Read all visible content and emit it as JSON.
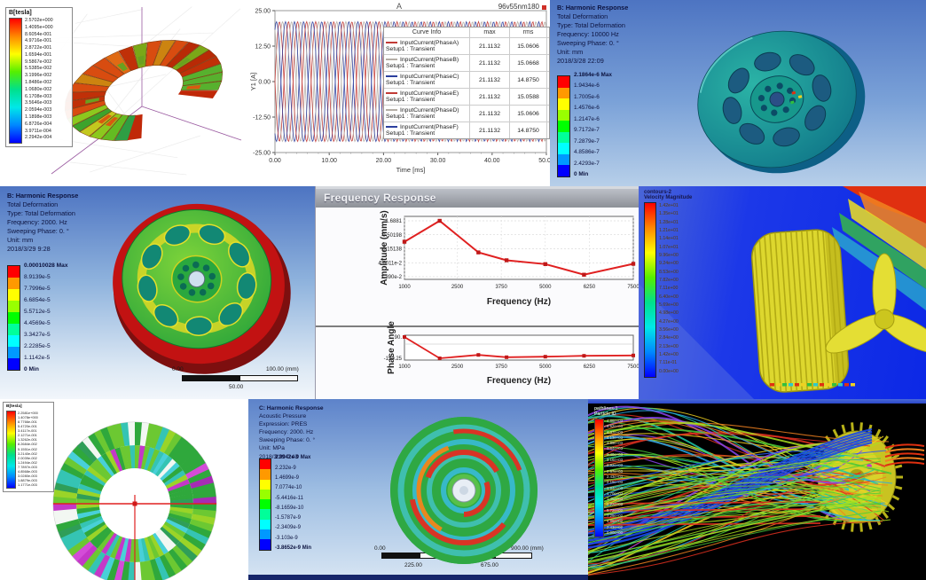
{
  "palettes": {
    "ansys9": [
      "#ff0000",
      "#ff9900",
      "#ffff00",
      "#99ff00",
      "#00ff00",
      "#00ff99",
      "#00ffff",
      "#0099ff",
      "#0000ff"
    ],
    "rainbow": [
      "#ff0000",
      "#ff8800",
      "#ffff00",
      "#55ee00",
      "#00e08c",
      "#00e8e8",
      "#0088ff",
      "#0000ff"
    ],
    "streamlines": [
      "#e03020",
      "#f08020",
      "#f0d020",
      "#a8e020",
      "#48c838",
      "#20c8a8",
      "#28a8e8",
      "#2858f8",
      "#8844ee"
    ],
    "torus_reds": [
      "#c03008",
      "#d84c10",
      "#e06a14",
      "#b82a06",
      "#cc8410",
      "#7aa818"
    ],
    "torus_greens": [
      "#3da32c",
      "#63bb22",
      "#8cc81e",
      "#2f9e44",
      "#c3c81e",
      "#57b12e"
    ]
  },
  "panels": {
    "maxwell_torus": {
      "legend_title": "B[tesla]",
      "legend_values": [
        "2.5702e+000",
        "1.4095e+000",
        "8.6054e-001",
        "4.9716e-001",
        "2.8722e-001",
        "1.6594e-001",
        "9.5867e-002",
        "5.5385e-002",
        "3.1996e-002",
        "1.8486e-002",
        "1.0680e-002",
        "6.1708e-003",
        "3.5646e-003",
        "2.0594e-003",
        "1.1898e-003",
        "6.8726e-004",
        "3.9711e-004",
        "2.2942e-004"
      ]
    },
    "transient_currents": {
      "title": "A",
      "corner_label": "96v55nm180",
      "ylabel": "Y1 [A]",
      "xlabel": "Time [ms]",
      "y_ticks": [
        "25.00",
        "12.50",
        "0.00",
        "-12.50",
        "-25.00"
      ],
      "x_ticks": [
        "0.00",
        "10.00",
        "20.00",
        "30.00",
        "40.00",
        "50.00"
      ],
      "legend_header": [
        "Curve Info",
        "max",
        "rms"
      ],
      "curves": [
        {
          "name": "InputCurrent(PhaseA)",
          "sub": "Setup1 : Transient",
          "max": "21.1132",
          "rms": "15.0606",
          "color": "#c23b36",
          "phase_deg": 0
        },
        {
          "name": "InputCurrent(PhaseB)",
          "sub": "Setup1 : Transient",
          "max": "21.1132",
          "rms": "15.0668",
          "color": "#b5aea6",
          "phase_deg": -60
        },
        {
          "name": "InputCurrent(PhaseC)",
          "sub": "Setup1 : Transient",
          "max": "21.1132",
          "rms": "14.8750",
          "color": "#2c3f9e",
          "phase_deg": -120
        },
        {
          "name": "InputCurrent(PhaseE)",
          "sub": "Setup1 : Transient",
          "max": "21.1132",
          "rms": "15.0588",
          "color": "#c23b36",
          "phase_deg": -180
        },
        {
          "name": "InputCurrent(PhaseD)",
          "sub": "Setup1 : Transient",
          "max": "21.1132",
          "rms": "15.0606",
          "color": "#b5aea6",
          "phase_deg": -240
        },
        {
          "name": "InputCurrent(PhaseF)",
          "sub": "Setup1 : Transient",
          "max": "21.1132",
          "rms": "14.8750",
          "color": "#2c3f9e",
          "phase_deg": -300
        }
      ]
    },
    "harmonic_10000": {
      "title_lines": [
        "B: Harmonic Response",
        "Total Deformation",
        "Type: Total Deformation",
        "Frequency: 10000 Hz",
        "Sweeping Phase: 0. °",
        "Unit: mm",
        "2018/3/28 22:09"
      ],
      "legend_values": [
        "2.1864e-6 Max",
        "1.9434e-6",
        "1.7005e-6",
        "1.4576e-6",
        "1.2147e-6",
        "9.7172e-7",
        "7.2879e-7",
        "4.8586e-7",
        "2.4293e-7",
        "0 Min"
      ]
    },
    "harmonic_2000": {
      "title_lines": [
        "B: Harmonic Response",
        "Total Deformation",
        "Type: Total Deformation",
        "Frequency: 2000. Hz",
        "Sweeping Phase: 0. °",
        "Unit: mm",
        "2018/3/29 9:28"
      ],
      "legend_values": [
        "0.00010028 Max",
        "8.9139e-5",
        "7.7996e-5",
        "6.6854e-5",
        "5.5712e-5",
        "4.4569e-5",
        "3.3427e-5",
        "2.2285e-5",
        "1.1142e-5",
        "0 Min"
      ],
      "scale_bar": {
        "left": "0.00",
        "right": "100.00 (mm)",
        "mid": "50.00"
      }
    },
    "frequency_response": {
      "window_title": "Frequency Response",
      "amplitude_ylabel": "Amplitude (mm/s)",
      "amplitude_yticks": [
        "1.6881",
        "0.50198",
        "0.15138",
        "4.6011e-2",
        "1.390e-2"
      ],
      "phase_ylabel": "Phase Angle",
      "phase_yticks": [
        "90.",
        "-150.25"
      ],
      "xlabel": "Frequency (Hz)",
      "x_ticks": [
        "1000",
        "2500",
        "3750",
        "5000",
        "6250",
        "7500"
      ]
    },
    "cfd_contour": {
      "legend_title_lines": [
        "contours-2",
        "Velocity Magnitude"
      ],
      "legend_values": [
        "1.42e+01",
        "1.35e+01",
        "1.28e+01",
        "1.21e+01",
        "1.14e+01",
        "1.07e+01",
        "9.96e+00",
        "9.24e+00",
        "8.53e+00",
        "7.82e+00",
        "7.11e+00",
        "6.40e+00",
        "5.69e+00",
        "4.98e+00",
        "4.27e+00",
        "3.56e+00",
        "2.84e+00",
        "2.13e+00",
        "1.42e+00",
        "7.11e-01",
        "0.00e+00"
      ]
    },
    "maxwell_rotor": {
      "legend_title": "B[tesla]",
      "legend_values": [
        "2.2581e+000",
        "1.4078e+000",
        "8.7766e-001",
        "5.4720e-001",
        "3.4117e-001",
        "2.1271e-001",
        "1.3262e-001",
        "8.2684e-002",
        "5.1551e-002",
        "3.2140e-002",
        "2.0039e-002",
        "1.2494e-002",
        "7.7897e-003",
        "4.8568e-003",
        "3.0280e-003",
        "1.8879e-003",
        "1.1771e-003"
      ]
    },
    "acoustic": {
      "title_lines": [
        "C: Harmonic Response",
        "Acoustic Pressure",
        "Expression: PRES",
        "Frequency: 2000. Hz",
        "Sweeping Phase: 0. °",
        "Unit: MPa",
        "2018/3/29 0:43"
      ],
      "legend_values": [
        "2.9942e-9 Max",
        "2.232e-9",
        "1.4699e-9",
        "7.0774e-10",
        "-5.4416e-11",
        "-8.1659e-10",
        "-1.5787e-9",
        "-2.3409e-9",
        "-3.103e-9",
        "-3.8652e-9 Min"
      ],
      "scale_bar": {
        "top": [
          "0.00",
          "450.00",
          "900.00 (mm)"
        ],
        "bottom": [
          "225.00",
          "675.00"
        ]
      }
    },
    "pathlines": {
      "legend_title_lines": [
        "pathlines-1",
        "Particle ID"
      ],
      "legend_values": [
        "4.86e+03",
        "4.62e+03",
        "4.37e+03",
        "4.13e+03",
        "3.89e+03",
        "3.64e+03",
        "3.40e+03",
        "3.16e+03",
        "2.92e+03",
        "2.67e+03",
        "2.43e+03",
        "2.19e+03",
        "1.94e+03",
        "1.70e+03",
        "1.46e+03",
        "1.22e+03",
        "9.72e+02",
        "7.29e+02",
        "4.86e+02",
        "2.43e+02",
        "0.00e+00"
      ]
    }
  },
  "chart_data": [
    {
      "type": "line",
      "title": "A",
      "subtitle": "96v55nm180",
      "xlabel": "Time [ms]",
      "ylabel": "Y1 [A]",
      "xlim": [
        0,
        50
      ],
      "ylim": [
        -25,
        25
      ],
      "waveform": "sine",
      "amplitude": 21.1132,
      "period_ms": 3.3333,
      "series": [
        {
          "name": "InputCurrent(PhaseA)",
          "phase_deg": 0,
          "max": 21.1132,
          "rms": 15.0606
        },
        {
          "name": "InputCurrent(PhaseB)",
          "phase_deg": -60,
          "max": 21.1132,
          "rms": 15.0668
        },
        {
          "name": "InputCurrent(PhaseC)",
          "phase_deg": -120,
          "max": 21.1132,
          "rms": 14.875
        },
        {
          "name": "InputCurrent(PhaseE)",
          "phase_deg": -180,
          "max": 21.1132,
          "rms": 15.0588
        },
        {
          "name": "InputCurrent(PhaseD)",
          "phase_deg": -240,
          "max": 21.1132,
          "rms": 15.0606
        },
        {
          "name": "InputCurrent(PhaseF)",
          "phase_deg": -300,
          "max": 21.1132,
          "rms": 14.875
        }
      ]
    },
    {
      "type": "line",
      "title": "Frequency Response",
      "subplots": [
        {
          "ylabel": "Amplitude (mm/s)",
          "xlabel": "Frequency (Hz)",
          "yscale": "log",
          "x": [
            1000,
            2000,
            3100,
            3900,
            5000,
            6100,
            7500
          ],
          "y": [
            0.28,
            1.6881,
            0.112,
            0.057,
            0.041,
            0.0165,
            0.042
          ],
          "ylim": [
            0.0139,
            1.6881
          ],
          "xlim": [
            1000,
            7500
          ]
        },
        {
          "ylabel": "Phase Angle",
          "xlabel": "Frequency (Hz)",
          "x": [
            1000,
            2000,
            3100,
            3900,
            5000,
            6100,
            7500
          ],
          "y": [
            90,
            -150.25,
            -112,
            -138,
            -132,
            -122,
            -118
          ],
          "ylim": [
            -170,
            110
          ],
          "xlim": [
            1000,
            7500
          ]
        }
      ]
    }
  ]
}
